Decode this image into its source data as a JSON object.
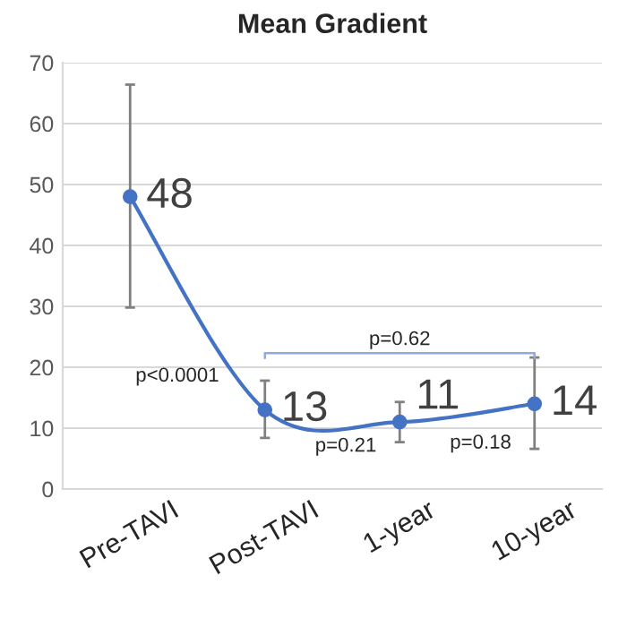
{
  "chart_data": {
    "type": "line",
    "title": "Mean Gradient",
    "categories": [
      "Pre-TAVI",
      "Post-TAVI",
      "1-year",
      "10-year"
    ],
    "series": [
      {
        "color": "#4472c4",
        "values": [
          48,
          13,
          11,
          14
        ],
        "errors": [
          [
            29.8,
            66.4
          ],
          [
            8.4,
            17.8
          ],
          [
            7.7,
            14.3
          ],
          [
            6.6,
            21.6
          ]
        ]
      }
    ],
    "data_labels": true,
    "marker": "circle",
    "line_style": "solid",
    "ylim": [
      0,
      70
    ],
    "yticks": [
      0,
      10,
      20,
      30,
      40,
      50,
      60,
      70
    ],
    "grid": "y",
    "legend": false,
    "annotations": [
      "p<0.0001",
      "p=0.21",
      "p=0.18",
      "p=0.62"
    ]
  }
}
